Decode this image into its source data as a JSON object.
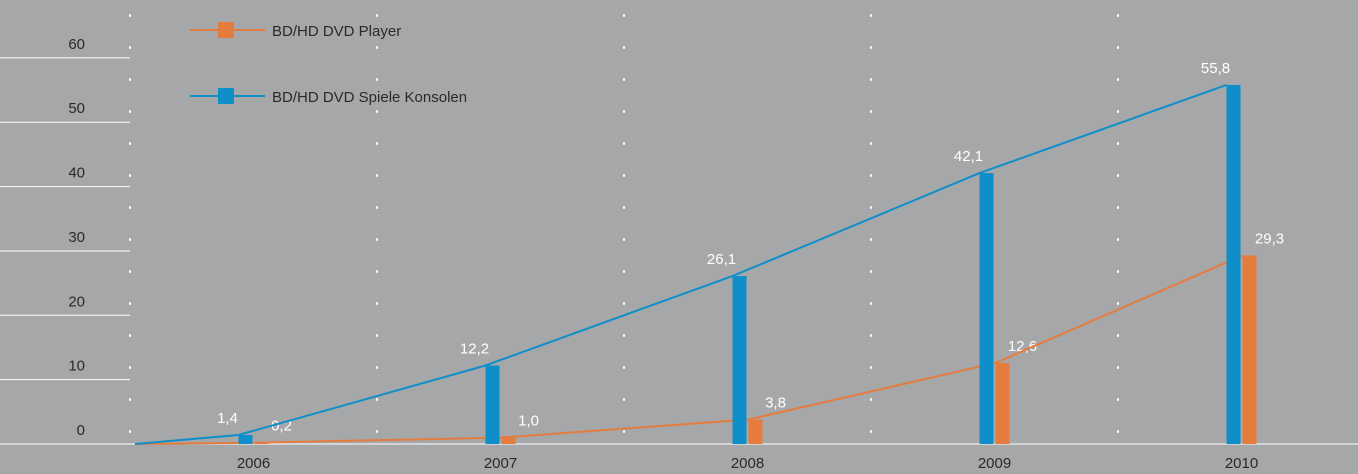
{
  "chart_data": {
    "type": "bar_line",
    "categories": [
      "2006",
      "2007",
      "2008",
      "2009",
      "2010"
    ],
    "series": [
      {
        "name": "BD/HD DVD Player",
        "color": "#e57c3e",
        "values": [
          0.2,
          1.0,
          3.8,
          12.6,
          29.3
        ],
        "value_labels": [
          "0,2",
          "1,0",
          "3,8",
          "12,6",
          "29,3"
        ]
      },
      {
        "name": "BD/HD DVD Spiele Konsolen",
        "color": "#0e8fca",
        "values": [
          1.4,
          12.2,
          26.1,
          42.1,
          55.8
        ],
        "value_labels": [
          "1,4",
          "12,2",
          "26,1",
          "42,1",
          "55,8"
        ]
      }
    ],
    "ylim": [
      0,
      69
    ],
    "yticks": [
      0,
      10,
      20,
      30,
      40,
      50,
      60
    ],
    "legend": "top-left"
  }
}
